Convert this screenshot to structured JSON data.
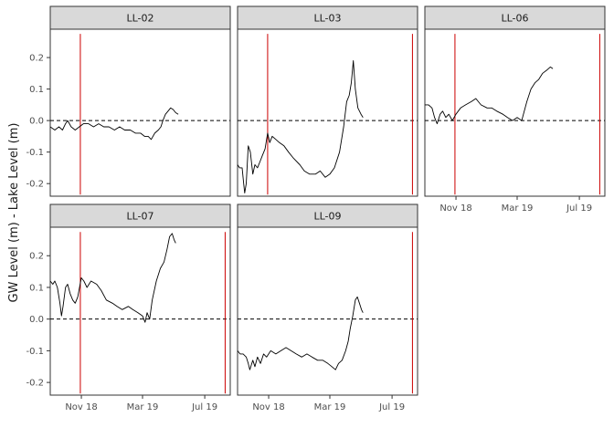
{
  "chart_data": {
    "type": "line",
    "ylabel": "GW Level (m) - Lake Level (m)",
    "x_ticks": [
      "Nov 18",
      "Mar 19",
      "Jul 19"
    ],
    "y_ticks": [
      -0.2,
      -0.1,
      0.0,
      0.1,
      0.2
    ],
    "xlim": [
      "2018-09-01",
      "2019-08-20"
    ],
    "ylim": [
      -0.24,
      0.29
    ],
    "grid": false,
    "reference_line": {
      "y": 0.0,
      "style": "dashed",
      "color": "#000000"
    },
    "vline_color": "#CC0000",
    "line_color": "#000000",
    "panels": [
      {
        "label": "LL-02",
        "vlines": [
          "2018-10-30"
        ],
        "series": [
          [
            "2018-09-01",
            -0.02
          ],
          [
            "2018-09-10",
            -0.03
          ],
          [
            "2018-09-18",
            -0.02
          ],
          [
            "2018-09-25",
            -0.03
          ],
          [
            "2018-10-01",
            -0.01
          ],
          [
            "2018-10-05",
            0.0
          ],
          [
            "2018-10-12",
            -0.02
          ],
          [
            "2018-10-20",
            -0.03
          ],
          [
            "2018-10-28",
            -0.02
          ],
          [
            "2018-11-05",
            -0.01
          ],
          [
            "2018-11-15",
            -0.01
          ],
          [
            "2018-11-25",
            -0.02
          ],
          [
            "2018-12-05",
            -0.01
          ],
          [
            "2018-12-15",
            -0.02
          ],
          [
            "2018-12-25",
            -0.02
          ],
          [
            "2019-01-05",
            -0.03
          ],
          [
            "2019-01-15",
            -0.02
          ],
          [
            "2019-01-25",
            -0.03
          ],
          [
            "2019-02-05",
            -0.03
          ],
          [
            "2019-02-15",
            -0.04
          ],
          [
            "2019-02-25",
            -0.04
          ],
          [
            "2019-03-05",
            -0.05
          ],
          [
            "2019-03-12",
            -0.05
          ],
          [
            "2019-03-18",
            -0.06
          ],
          [
            "2019-03-25",
            -0.04
          ],
          [
            "2019-04-01",
            -0.03
          ],
          [
            "2019-04-06",
            -0.02
          ],
          [
            "2019-04-10",
            0.0
          ],
          [
            "2019-04-15",
            0.02
          ],
          [
            "2019-04-20",
            0.03
          ],
          [
            "2019-04-25",
            0.04
          ],
          [
            "2019-04-30",
            0.035
          ],
          [
            "2019-05-05",
            0.025
          ],
          [
            "2019-05-10",
            0.02
          ]
        ]
      },
      {
        "label": "LL-03",
        "vlines": [
          "2018-10-30",
          "2019-08-10"
        ],
        "series": [
          [
            "2018-09-01",
            -0.14
          ],
          [
            "2018-09-05",
            -0.15
          ],
          [
            "2018-09-10",
            -0.15
          ],
          [
            "2018-09-13",
            -0.2
          ],
          [
            "2018-09-15",
            -0.23
          ],
          [
            "2018-09-18",
            -0.2
          ],
          [
            "2018-09-22",
            -0.08
          ],
          [
            "2018-09-26",
            -0.1
          ],
          [
            "2018-10-01",
            -0.17
          ],
          [
            "2018-10-05",
            -0.14
          ],
          [
            "2018-10-10",
            -0.15
          ],
          [
            "2018-10-15",
            -0.13
          ],
          [
            "2018-10-20",
            -0.11
          ],
          [
            "2018-10-25",
            -0.09
          ],
          [
            "2018-10-30",
            -0.04
          ],
          [
            "2018-11-03",
            -0.07
          ],
          [
            "2018-11-08",
            -0.05
          ],
          [
            "2018-11-15",
            -0.06
          ],
          [
            "2018-11-22",
            -0.07
          ],
          [
            "2018-12-01",
            -0.08
          ],
          [
            "2018-12-10",
            -0.1
          ],
          [
            "2018-12-20",
            -0.12
          ],
          [
            "2019-01-01",
            -0.14
          ],
          [
            "2019-01-10",
            -0.16
          ],
          [
            "2019-01-20",
            -0.17
          ],
          [
            "2019-02-01",
            -0.17
          ],
          [
            "2019-02-10",
            -0.16
          ],
          [
            "2019-02-20",
            -0.18
          ],
          [
            "2019-03-01",
            -0.17
          ],
          [
            "2019-03-10",
            -0.15
          ],
          [
            "2019-03-20",
            -0.1
          ],
          [
            "2019-03-28",
            -0.02
          ],
          [
            "2019-04-03",
            0.06
          ],
          [
            "2019-04-08",
            0.08
          ],
          [
            "2019-04-12",
            0.12
          ],
          [
            "2019-04-16",
            0.19
          ],
          [
            "2019-04-20",
            0.1
          ],
          [
            "2019-04-25",
            0.04
          ],
          [
            "2019-05-01",
            0.02
          ],
          [
            "2019-05-05",
            0.01
          ]
        ]
      },
      {
        "label": "LL-06",
        "vlines": [
          "2018-10-30",
          "2019-08-10"
        ],
        "series": [
          [
            "2018-09-01",
            0.05
          ],
          [
            "2018-09-08",
            0.05
          ],
          [
            "2018-09-15",
            0.04
          ],
          [
            "2018-09-20",
            0.01
          ],
          [
            "2018-09-25",
            -0.01
          ],
          [
            "2018-10-01",
            0.02
          ],
          [
            "2018-10-06",
            0.03
          ],
          [
            "2018-10-12",
            0.01
          ],
          [
            "2018-10-18",
            0.02
          ],
          [
            "2018-10-25",
            0.0
          ],
          [
            "2018-11-01",
            0.02
          ],
          [
            "2018-11-10",
            0.04
          ],
          [
            "2018-11-20",
            0.05
          ],
          [
            "2018-12-01",
            0.06
          ],
          [
            "2018-12-10",
            0.07
          ],
          [
            "2018-12-20",
            0.05
          ],
          [
            "2019-01-01",
            0.04
          ],
          [
            "2019-01-10",
            0.04
          ],
          [
            "2019-01-20",
            0.03
          ],
          [
            "2019-02-01",
            0.02
          ],
          [
            "2019-02-10",
            0.01
          ],
          [
            "2019-02-20",
            0.0
          ],
          [
            "2019-03-01",
            0.01
          ],
          [
            "2019-03-10",
            0.0
          ],
          [
            "2019-03-15",
            0.03
          ],
          [
            "2019-03-20",
            0.06
          ],
          [
            "2019-03-28",
            0.1
          ],
          [
            "2019-04-05",
            0.12
          ],
          [
            "2019-04-12",
            0.13
          ],
          [
            "2019-04-20",
            0.15
          ],
          [
            "2019-04-28",
            0.16
          ],
          [
            "2019-05-05",
            0.17
          ],
          [
            "2019-05-10",
            0.165
          ]
        ]
      },
      {
        "label": "LL-07",
        "vlines": [
          "2018-10-30",
          "2019-08-10"
        ],
        "series": [
          [
            "2018-09-01",
            0.12
          ],
          [
            "2018-09-06",
            0.11
          ],
          [
            "2018-09-10",
            0.12
          ],
          [
            "2018-09-15",
            0.1
          ],
          [
            "2018-09-20",
            0.05
          ],
          [
            "2018-09-23",
            0.01
          ],
          [
            "2018-09-26",
            0.04
          ],
          [
            "2018-10-01",
            0.1
          ],
          [
            "2018-10-05",
            0.11
          ],
          [
            "2018-10-10",
            0.08
          ],
          [
            "2018-10-15",
            0.06
          ],
          [
            "2018-10-20",
            0.05
          ],
          [
            "2018-10-25",
            0.07
          ],
          [
            "2018-11-01",
            0.13
          ],
          [
            "2018-11-06",
            0.12
          ],
          [
            "2018-11-12",
            0.1
          ],
          [
            "2018-11-20",
            0.12
          ],
          [
            "2018-12-01",
            0.11
          ],
          [
            "2018-12-10",
            0.09
          ],
          [
            "2018-12-20",
            0.06
          ],
          [
            "2019-01-01",
            0.05
          ],
          [
            "2019-01-10",
            0.04
          ],
          [
            "2019-01-20",
            0.03
          ],
          [
            "2019-02-01",
            0.04
          ],
          [
            "2019-02-10",
            0.03
          ],
          [
            "2019-02-20",
            0.02
          ],
          [
            "2019-03-01",
            0.01
          ],
          [
            "2019-03-06",
            -0.01
          ],
          [
            "2019-03-10",
            0.02
          ],
          [
            "2019-03-15",
            0.0
          ],
          [
            "2019-03-20",
            0.06
          ],
          [
            "2019-03-28",
            0.12
          ],
          [
            "2019-04-05",
            0.16
          ],
          [
            "2019-04-12",
            0.18
          ],
          [
            "2019-04-18",
            0.22
          ],
          [
            "2019-04-23",
            0.26
          ],
          [
            "2019-04-28",
            0.27
          ],
          [
            "2019-05-02",
            0.25
          ],
          [
            "2019-05-05",
            0.24
          ]
        ]
      },
      {
        "label": "LL-09",
        "vlines": [
          "2019-08-10"
        ],
        "series": [
          [
            "2018-09-01",
            -0.1
          ],
          [
            "2018-09-06",
            -0.11
          ],
          [
            "2018-09-12",
            -0.11
          ],
          [
            "2018-09-18",
            -0.12
          ],
          [
            "2018-09-22",
            -0.14
          ],
          [
            "2018-09-25",
            -0.16
          ],
          [
            "2018-10-01",
            -0.13
          ],
          [
            "2018-10-05",
            -0.15
          ],
          [
            "2018-10-10",
            -0.12
          ],
          [
            "2018-10-16",
            -0.14
          ],
          [
            "2018-10-22",
            -0.11
          ],
          [
            "2018-10-28",
            -0.12
          ],
          [
            "2018-11-05",
            -0.1
          ],
          [
            "2018-11-15",
            -0.11
          ],
          [
            "2018-11-25",
            -0.1
          ],
          [
            "2018-12-05",
            -0.09
          ],
          [
            "2018-12-15",
            -0.1
          ],
          [
            "2018-12-25",
            -0.11
          ],
          [
            "2019-01-05",
            -0.12
          ],
          [
            "2019-01-15",
            -0.11
          ],
          [
            "2019-01-25",
            -0.12
          ],
          [
            "2019-02-05",
            -0.13
          ],
          [
            "2019-02-15",
            -0.13
          ],
          [
            "2019-02-25",
            -0.14
          ],
          [
            "2019-03-05",
            -0.15
          ],
          [
            "2019-03-12",
            -0.16
          ],
          [
            "2019-03-18",
            -0.14
          ],
          [
            "2019-03-25",
            -0.13
          ],
          [
            "2019-04-01",
            -0.1
          ],
          [
            "2019-04-06",
            -0.07
          ],
          [
            "2019-04-10",
            -0.03
          ],
          [
            "2019-04-15",
            0.01
          ],
          [
            "2019-04-20",
            0.06
          ],
          [
            "2019-04-24",
            0.07
          ],
          [
            "2019-04-28",
            0.05
          ],
          [
            "2019-05-02",
            0.03
          ],
          [
            "2019-05-05",
            0.02
          ]
        ]
      }
    ]
  }
}
